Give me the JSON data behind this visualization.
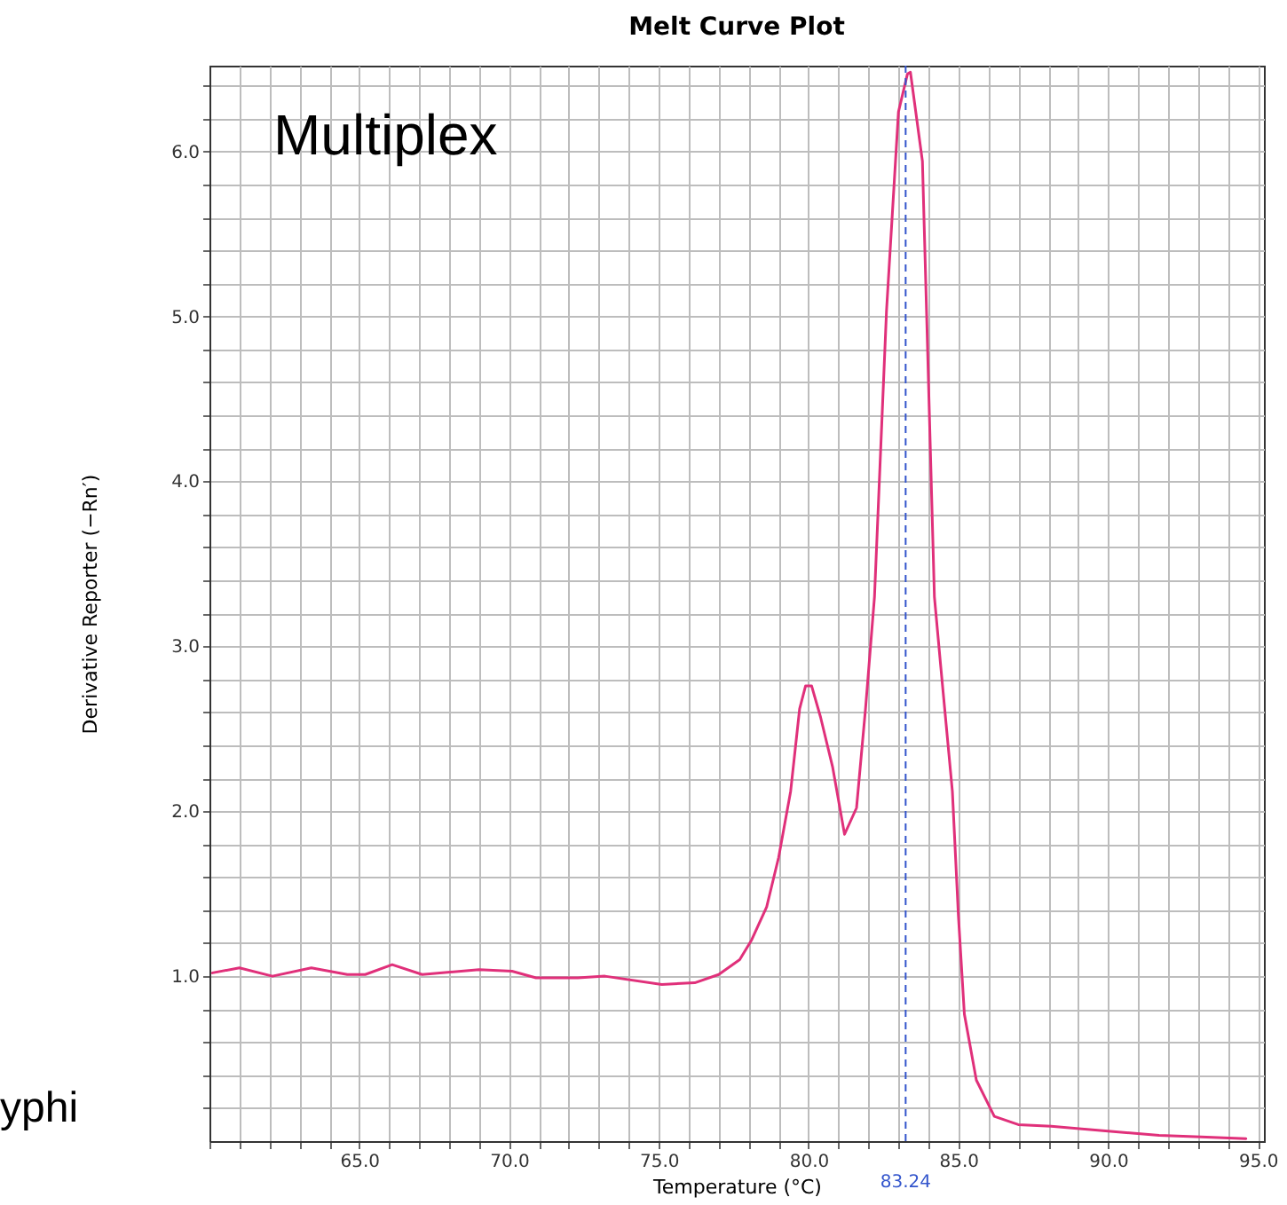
{
  "chart_data": {
    "type": "line",
    "title": "Melt Curve Plot",
    "xlabel": "Temperature (°C)",
    "ylabel": "Derivative Reporter (−Rn′)",
    "annotations": [
      "Multiplex",
      "yphi"
    ],
    "x": [
      60.1,
      61.0,
      62.1,
      63.4,
      64.6,
      65.2,
      66.1,
      67.1,
      69.0,
      70.1,
      70.9,
      72.3,
      73.2,
      75.1,
      76.2,
      77.0,
      77.7,
      78.1,
      78.6,
      79.0,
      79.4,
      79.7,
      79.9,
      80.1,
      80.4,
      80.8,
      81.2,
      81.6,
      81.9,
      82.2,
      82.6,
      83.0,
      83.3,
      83.4,
      83.8,
      84.2,
      84.4,
      84.8,
      85.0,
      85.2,
      85.6,
      86.2,
      87.0,
      88.1,
      90.0,
      91.7,
      93.1,
      94.6
    ],
    "series": [
      {
        "color": "#e0307a",
        "values": [
          1.02,
          1.05,
          1.0,
          1.05,
          1.01,
          1.01,
          1.07,
          1.01,
          1.04,
          1.03,
          0.99,
          0.99,
          1.0,
          0.95,
          0.96,
          1.01,
          1.1,
          1.22,
          1.42,
          1.72,
          2.12,
          2.62,
          2.76,
          2.76,
          2.57,
          2.27,
          1.86,
          2.02,
          2.62,
          3.3,
          5.03,
          6.24,
          6.47,
          6.48,
          5.94,
          3.3,
          2.9,
          2.12,
          1.37,
          0.77,
          0.37,
          0.15,
          0.1,
          0.09,
          0.06,
          0.035,
          0.025,
          0.015
        ]
      }
    ],
    "xlim": [
      60,
      95.2
    ],
    "ylim": [
      0,
      6.52
    ],
    "xticks": [
      {
        "value": 60,
        "label": null
      },
      {
        "value": 61,
        "label": null
      },
      {
        "value": 62,
        "label": null
      },
      {
        "value": 63,
        "label": null
      },
      {
        "value": 64,
        "label": null
      },
      {
        "value": 65,
        "label": "65.0"
      },
      {
        "value": 66,
        "label": null
      },
      {
        "value": 67,
        "label": null
      },
      {
        "value": 68,
        "label": null
      },
      {
        "value": 69,
        "label": null
      },
      {
        "value": 70,
        "label": "70.0"
      },
      {
        "value": 71,
        "label": null
      },
      {
        "value": 72,
        "label": null
      },
      {
        "value": 73,
        "label": null
      },
      {
        "value": 74,
        "label": null
      },
      {
        "value": 75,
        "label": "75.0"
      },
      {
        "value": 76,
        "label": null
      },
      {
        "value": 77,
        "label": null
      },
      {
        "value": 78,
        "label": null
      },
      {
        "value": 79,
        "label": null
      },
      {
        "value": 80,
        "label": "80.0"
      },
      {
        "value": 81,
        "label": null
      },
      {
        "value": 82,
        "label": null
      },
      {
        "value": 83,
        "label": null
      },
      {
        "value": 84,
        "label": null
      },
      {
        "value": 85,
        "label": "85.0"
      },
      {
        "value": 86,
        "label": null
      },
      {
        "value": 87,
        "label": null
      },
      {
        "value": 88,
        "label": null
      },
      {
        "value": 89,
        "label": null
      },
      {
        "value": 90,
        "label": "90.0"
      },
      {
        "value": 91,
        "label": null
      },
      {
        "value": 92,
        "label": null
      },
      {
        "value": 93,
        "label": null
      },
      {
        "value": 94,
        "label": null
      },
      {
        "value": 95,
        "label": "95.0"
      }
    ],
    "yticks": [
      {
        "value": 0.2,
        "label": null
      },
      {
        "value": 0.4,
        "label": null
      },
      {
        "value": 0.6,
        "label": null
      },
      {
        "value": 0.8,
        "label": null
      },
      {
        "value": 1,
        "label": "1.0"
      },
      {
        "value": 1.2,
        "label": null
      },
      {
        "value": 1.4,
        "label": null
      },
      {
        "value": 1.6,
        "label": null
      },
      {
        "value": 1.8,
        "label": null
      },
      {
        "value": 2,
        "label": "2.0"
      },
      {
        "value": 2.2,
        "label": null
      },
      {
        "value": 2.4,
        "label": null
      },
      {
        "value": 2.6,
        "label": null
      },
      {
        "value": 2.8,
        "label": null
      },
      {
        "value": 3,
        "label": "3.0"
      },
      {
        "value": 3.2,
        "label": null
      },
      {
        "value": 3.4,
        "label": null
      },
      {
        "value": 3.6,
        "label": null
      },
      {
        "value": 3.8,
        "label": null
      },
      {
        "value": 4,
        "label": "4.0"
      },
      {
        "value": 4.2,
        "label": null
      },
      {
        "value": 4.4,
        "label": null
      },
      {
        "value": 4.6,
        "label": null
      },
      {
        "value": 4.8,
        "label": null
      },
      {
        "value": 5,
        "label": "5.0"
      },
      {
        "value": 5.2,
        "label": null
      },
      {
        "value": 5.4,
        "label": null
      },
      {
        "value": 5.6,
        "label": null
      },
      {
        "value": 5.8,
        "label": null
      },
      {
        "value": 6,
        "label": "6.0"
      },
      {
        "value": 6.2,
        "label": null
      },
      {
        "value": 6.4,
        "label": null
      }
    ],
    "grid": true,
    "marker": "none",
    "line_style": "solid",
    "ref_lines": [
      {
        "axis": "x",
        "value": 83.24,
        "label": "83.24",
        "color": "#3355cc",
        "line_style": "dashed"
      }
    ]
  }
}
